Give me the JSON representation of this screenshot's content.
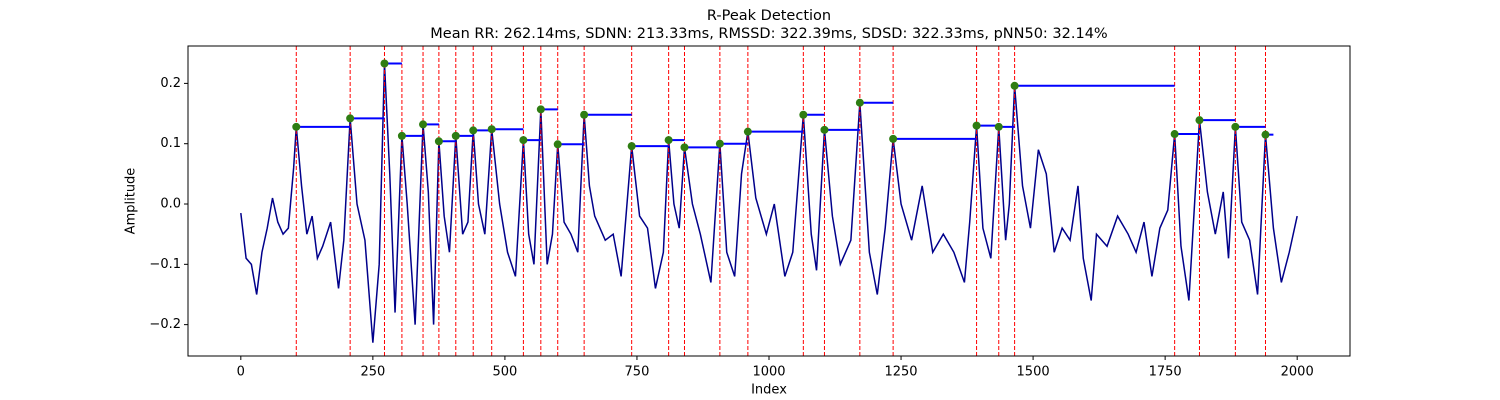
{
  "chart_data": {
    "type": "line",
    "title": "R-Peak Detection",
    "subtitle": "Mean RR: 262.14ms, SDNN: 213.33ms, RMSSD: 322.39ms, SDSD: 322.33ms, pNN50: 32.14%",
    "x_label": "Index",
    "y_label": "Amplitude",
    "xlim": [
      -100,
      2100
    ],
    "ylim": [
      -0.252,
      0.262
    ],
    "xticks": [
      0,
      250,
      500,
      750,
      1000,
      1250,
      1500,
      1750,
      2000
    ],
    "yticks": [
      {
        "value": -0.2,
        "label": "−0.2"
      },
      {
        "value": -0.1,
        "label": "−0.1"
      },
      {
        "value": 0,
        "label": "0.0"
      },
      0.1,
      0.2
    ],
    "grid": false,
    "series": [
      {
        "color": "#00008b",
        "x": [
          0,
          10,
          20,
          30,
          40,
          50,
          60,
          70,
          80,
          90,
          100,
          105,
          115,
          125,
          135,
          145,
          155,
          170,
          185,
          195,
          207,
          220,
          235,
          250,
          262,
          272,
          282,
          292,
          305,
          315,
          330,
          345,
          355,
          365,
          375,
          385,
          395,
          407,
          420,
          430,
          440,
          450,
          462,
          475,
          490,
          505,
          520,
          535,
          545,
          555,
          568,
          580,
          590,
          600,
          612,
          625,
          638,
          650,
          660,
          670,
          690,
          705,
          720,
          740,
          755,
          770,
          785,
          800,
          810,
          820,
          830,
          840,
          855,
          870,
          890,
          907,
          920,
          935,
          948,
          960,
          975,
          995,
          1010,
          1030,
          1045,
          1065,
          1080,
          1090,
          1105,
          1120,
          1135,
          1155,
          1172,
          1190,
          1205,
          1220,
          1235,
          1250,
          1270,
          1290,
          1310,
          1330,
          1350,
          1370,
          1380,
          1393,
          1405,
          1420,
          1435,
          1448,
          1455,
          1465,
          1480,
          1495,
          1510,
          1525,
          1540,
          1555,
          1570,
          1585,
          1595,
          1610,
          1620,
          1640,
          1660,
          1680,
          1695,
          1710,
          1725,
          1740,
          1755,
          1768,
          1780,
          1795,
          1815,
          1830,
          1845,
          1860,
          1870,
          1883,
          1895,
          1910,
          1925,
          1940,
          1955,
          1970,
          1985,
          2000
        ],
        "values": [
          -0.015,
          -0.09,
          -0.1,
          -0.15,
          -0.08,
          -0.04,
          0.01,
          -0.03,
          -0.05,
          -0.04,
          0.06,
          0.128,
          0.03,
          -0.05,
          -0.02,
          -0.09,
          -0.07,
          -0.03,
          -0.14,
          -0.06,
          0.142,
          0.0,
          -0.06,
          -0.23,
          -0.1,
          0.233,
          0.05,
          -0.18,
          0.113,
          0.0,
          -0.2,
          0.132,
          0.02,
          -0.2,
          0.104,
          -0.02,
          -0.08,
          0.113,
          -0.05,
          -0.03,
          0.122,
          0.0,
          -0.05,
          0.124,
          0.0,
          -0.08,
          -0.12,
          0.106,
          -0.05,
          -0.1,
          0.157,
          -0.1,
          -0.05,
          0.099,
          -0.03,
          -0.05,
          -0.08,
          0.148,
          0.03,
          -0.02,
          -0.06,
          -0.05,
          -0.12,
          0.096,
          -0.02,
          -0.04,
          -0.14,
          -0.08,
          0.106,
          0.0,
          -0.04,
          0.094,
          0.0,
          -0.05,
          -0.13,
          0.1,
          -0.08,
          -0.12,
          0.05,
          0.12,
          0.01,
          -0.05,
          0.0,
          -0.12,
          -0.08,
          0.148,
          -0.05,
          -0.11,
          0.123,
          -0.02,
          -0.1,
          -0.06,
          0.168,
          -0.08,
          -0.15,
          -0.04,
          0.108,
          0.0,
          -0.06,
          0.03,
          -0.08,
          -0.05,
          -0.08,
          -0.13,
          -0.03,
          0.13,
          -0.04,
          -0.09,
          0.128,
          -0.06,
          0.0,
          0.196,
          0.03,
          -0.04,
          0.09,
          0.05,
          -0.08,
          -0.04,
          -0.06,
          0.03,
          -0.09,
          -0.16,
          -0.05,
          -0.07,
          -0.02,
          -0.05,
          -0.08,
          -0.03,
          -0.12,
          -0.04,
          -0.01,
          0.116,
          -0.07,
          -0.16,
          0.139,
          0.02,
          -0.05,
          0.02,
          -0.09,
          0.128,
          -0.03,
          -0.06,
          -0.15,
          0.115,
          -0.04,
          -0.13,
          -0.08,
          -0.02
        ]
      }
    ],
    "peaks": {
      "marker_color": "#2e7d12",
      "vline_color": "#ff0000",
      "hline_color": "#0000ff",
      "x": [
        105,
        207,
        272,
        305,
        345,
        375,
        407,
        440,
        475,
        535,
        568,
        600,
        650,
        740,
        810,
        840,
        907,
        960,
        1065,
        1105,
        1172,
        1235,
        1393,
        1435,
        1465,
        1768,
        1815,
        1883,
        1940
      ],
      "values": [
        0.128,
        0.142,
        0.233,
        0.113,
        0.132,
        0.104,
        0.113,
        0.122,
        0.124,
        0.106,
        0.157,
        0.099,
        0.148,
        0.096,
        0.106,
        0.094,
        0.1,
        0.12,
        0.148,
        0.123,
        0.168,
        0.108,
        0.13,
        0.128,
        0.196,
        0.116,
        0.139,
        0.128,
        0.115
      ],
      "interval_end": [
        207,
        272,
        305,
        345,
        375,
        407,
        440,
        475,
        535,
        568,
        600,
        650,
        740,
        810,
        840,
        907,
        960,
        1065,
        1105,
        1172,
        1235,
        1393,
        1435,
        1465,
        1768,
        1815,
        1883,
        1940,
        1955
      ]
    }
  }
}
